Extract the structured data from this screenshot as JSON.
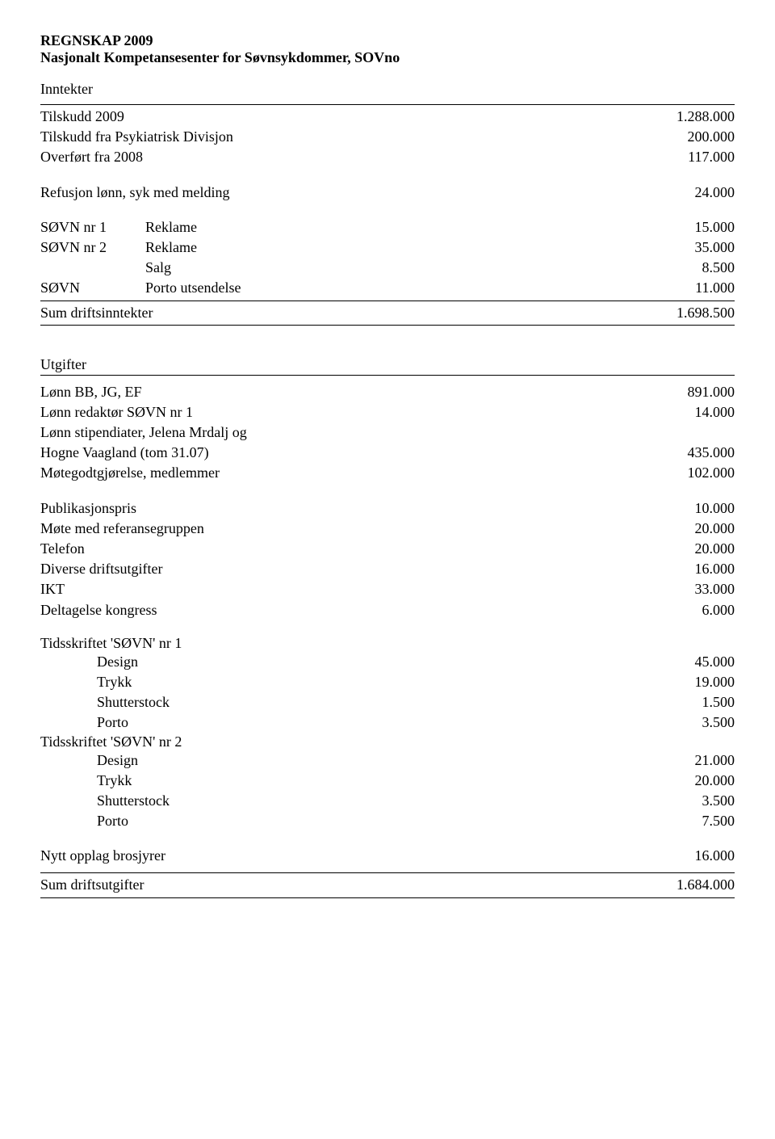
{
  "title_line1": "REGNSKAP 2009",
  "title_line2": "Nasjonalt Kompetansesenter for Søvnsykdommer, SOVno",
  "inntekter_heading": "Inntekter",
  "inntekter": {
    "tilskudd_2009": {
      "label": "Tilskudd 2009",
      "value": "1.288.000"
    },
    "tilskudd_psyk": {
      "label": "Tilskudd fra Psykiatrisk Divisjon",
      "value": "200.000"
    },
    "overfort": {
      "label": "Overført fra 2008",
      "value": "117.000"
    },
    "refusjon": {
      "label": "Refusjon lønn, syk med melding",
      "value": "24.000"
    },
    "sovn1": {
      "c1": "SØVN nr 1",
      "c2": "Reklame",
      "value": "15.000"
    },
    "sovn2": {
      "c1": "SØVN nr 2",
      "c2": "Reklame",
      "value": "35.000"
    },
    "salg": {
      "c1": "",
      "c2": "Salg",
      "value": "8.500"
    },
    "porto": {
      "c1": "SØVN",
      "c2": "Porto utsendelse",
      "value": "11.000"
    },
    "sum": {
      "label": "Sum driftsinntekter",
      "value": "1.698.500"
    }
  },
  "utgifter_heading": "Utgifter",
  "utgifter": {
    "lonn_bb": {
      "label": "Lønn    BB, JG, EF",
      "value": "891.000"
    },
    "lonn_red": {
      "label": "Lønn redaktør SØVN nr 1",
      "value": "14.000"
    },
    "lonn_stip_line1": "Lønn stipendiater, Jelena Mrdalj og",
    "lonn_stip_line2": {
      "label": "Hogne Vaagland (tom 31.07)",
      "value": "435.000"
    },
    "motegodt": {
      "label": "Møtegodtgjørelse, medlemmer",
      "value": "102.000"
    },
    "publikasjon": {
      "label": "Publikasjonspris",
      "value": "10.000"
    },
    "mote_ref": {
      "label": "Møte med referansegruppen",
      "value": "20.000"
    },
    "telefon": {
      "label": "Telefon",
      "value": "20.000"
    },
    "diverse": {
      "label": "Diverse driftsutgifter",
      "value": "16.000"
    },
    "ikt": {
      "label": "IKT",
      "value": "33.000"
    },
    "deltagelse": {
      "label": "Deltagelse kongress",
      "value": "6.000"
    },
    "tids1_heading": "Tidsskriftet 'SØVN' nr 1",
    "tids1_design": {
      "label": "Design",
      "value": "45.000"
    },
    "tids1_trykk": {
      "label": "Trykk",
      "value": "19.000"
    },
    "tids1_shutter": {
      "label": "Shutterstock",
      "value": "1.500"
    },
    "tids1_porto": {
      "label": "Porto",
      "value": "3.500"
    },
    "tids2_heading": "Tidsskriftet 'SØVN' nr 2",
    "tids2_design": {
      "label": "Design",
      "value": "21.000"
    },
    "tids2_trykk": {
      "label": "Trykk",
      "value": "20.000"
    },
    "tids2_shutter": {
      "label": "Shutterstock",
      "value": "3.500"
    },
    "tids2_porto": {
      "label": "Porto",
      "value": "7.500"
    },
    "nytt_opplag": {
      "label": "Nytt opplag brosjyrer",
      "value": "16.000"
    },
    "sum": {
      "label": "Sum driftsutgifter",
      "value": "1.684.000"
    }
  }
}
